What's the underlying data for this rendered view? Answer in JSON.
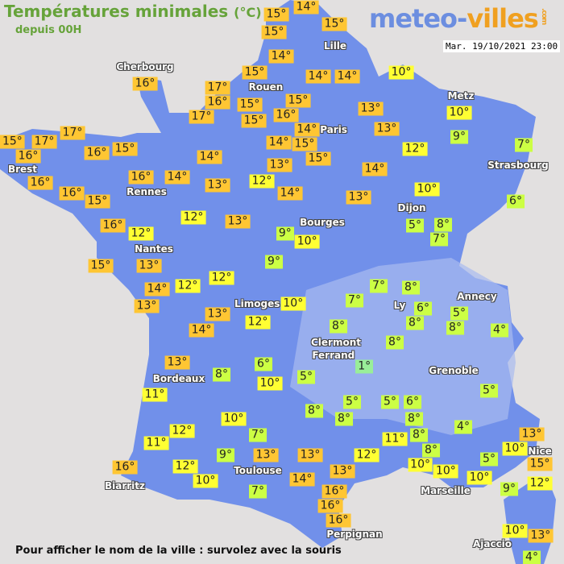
{
  "header": {
    "title": "Températures minimales",
    "unit": "(°C)",
    "subtitle": "depuis 00H",
    "logo_part1": "meteo-",
    "logo_part2": "villes",
    "logo_suffix": ".com",
    "datetime": "Mar. 19/10/2021 23:00"
  },
  "footer": {
    "hint": "Pour afficher le nom de la ville : survolez avec la souris"
  },
  "colors": {
    "land": "#7190ea",
    "sea": "#e2e0e0",
    "temp_13_plus": "#ffc633",
    "temp_10_12": "#ffff33",
    "temp_4_9": "#ccff44",
    "temp_below_4": "#99ee99"
  },
  "cities": [
    "Cherbourg",
    "Lille",
    "Rouen",
    "Paris",
    "Metz",
    "Strasbourg",
    "Brest",
    "Rennes",
    "Nantes",
    "Bourges",
    "Dijon",
    "Limoges",
    "Ly",
    "Annecy",
    "Clermont",
    "Ferrand",
    "Grenoble",
    "Bordeaux",
    "Toulouse",
    "Biarritz",
    "Marseille",
    "Nice",
    "Perpignan",
    "Ajaccio"
  ],
  "temperatures": [
    15,
    14,
    15,
    15,
    14,
    15,
    16,
    17,
    16,
    15,
    15,
    17,
    16,
    14,
    14,
    10,
    15,
    13,
    14,
    13,
    14,
    15,
    15,
    10,
    9,
    12,
    7,
    17,
    15,
    17,
    16,
    16,
    15,
    14,
    16,
    16,
    14,
    13,
    12,
    13,
    14,
    14,
    13,
    10,
    6,
    16,
    15,
    16,
    12,
    12,
    13,
    9,
    10,
    5,
    8,
    7,
    9,
    15,
    13,
    14,
    12,
    12,
    13,
    13,
    14,
    12,
    10,
    7,
    8,
    7,
    6,
    8,
    5,
    8,
    4,
    8,
    8,
    13,
    8,
    6,
    10,
    5,
    1,
    11,
    5,
    5,
    6,
    8,
    8,
    8,
    8,
    4,
    5,
    10,
    7,
    12,
    11,
    9,
    13,
    13,
    11,
    12,
    8,
    10,
    10,
    5,
    13,
    10,
    15,
    16,
    12,
    10,
    7,
    14,
    13,
    10,
    9,
    12,
    16,
    16,
    16,
    10,
    13,
    4
  ]
}
